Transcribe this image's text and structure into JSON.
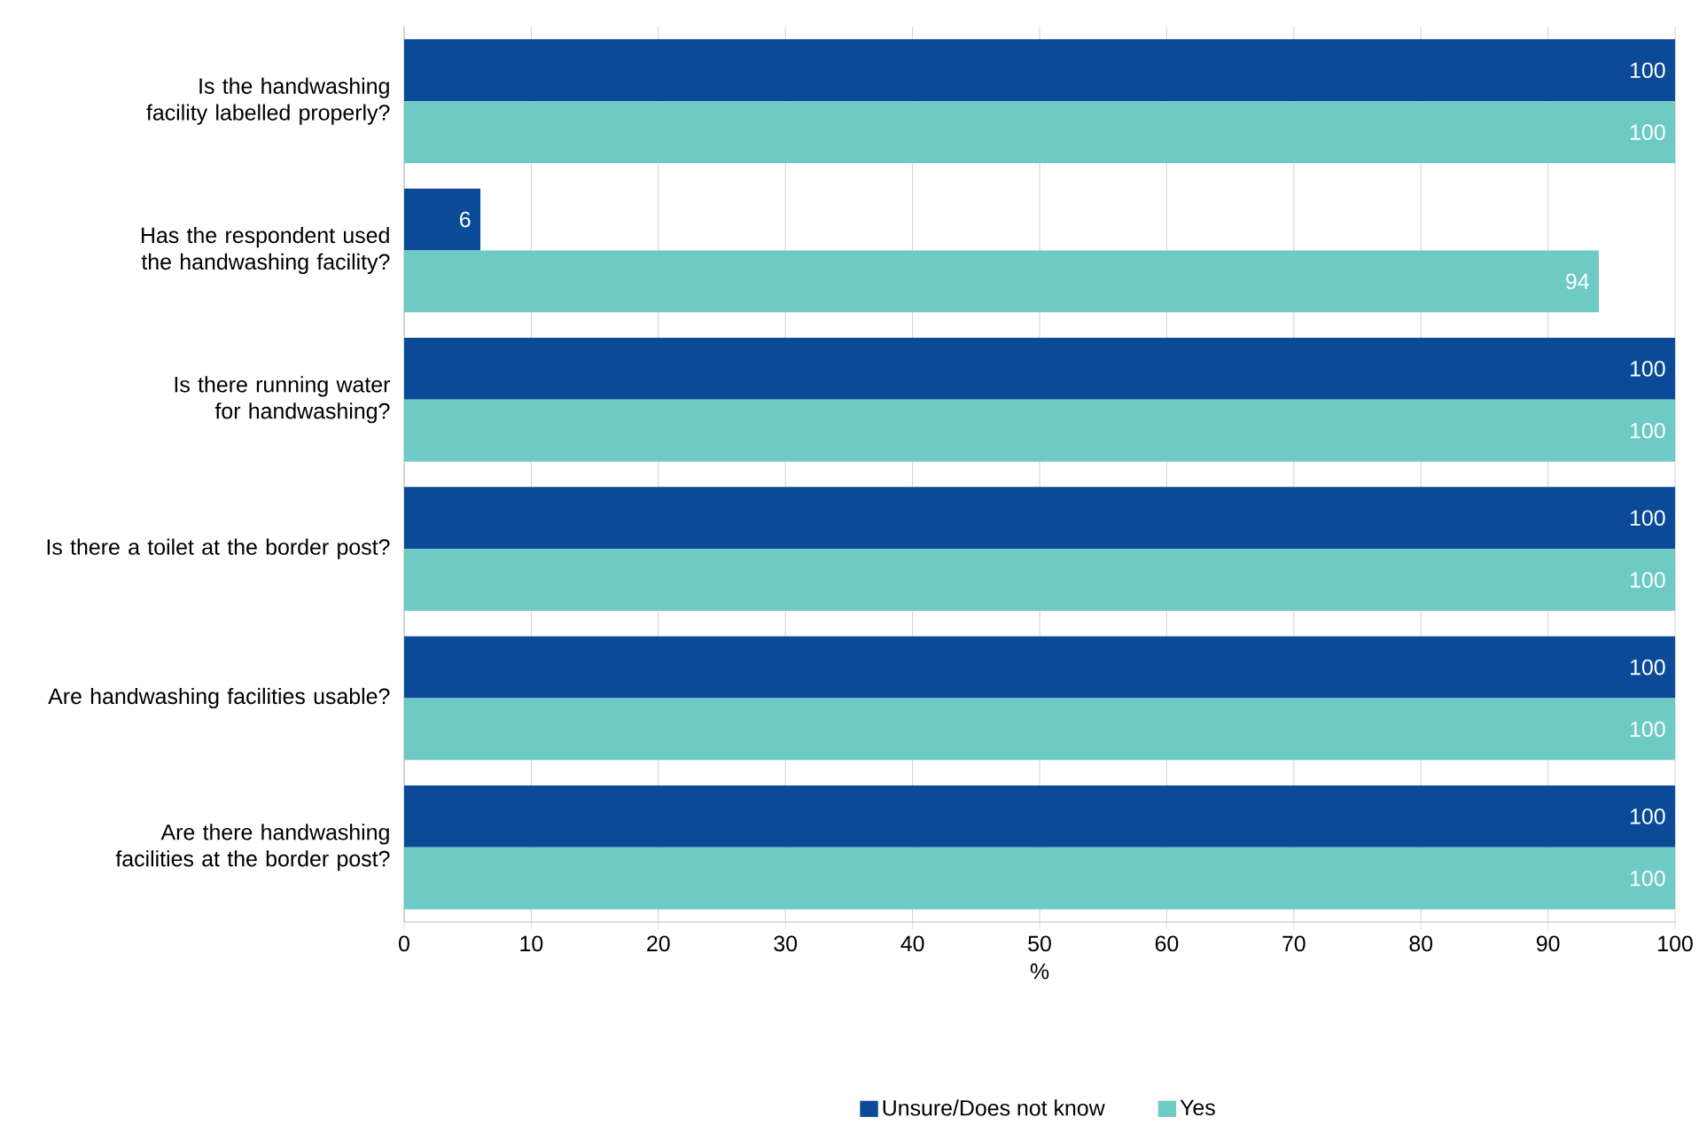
{
  "chart_data": {
    "type": "bar",
    "orientation": "horizontal",
    "categories": [
      "Is the handwashing facility labelled properly?",
      "Has the respondent used the handwashing facility?",
      "Is there running water for handwashing?",
      "Is there a toilet at the border post?",
      "Are handwashing facilities usable?",
      "Are there handwashing facilities at the border post?"
    ],
    "series": [
      {
        "name": "Unsure/Does not know",
        "color": "#0b4a97",
        "values": [
          100,
          6,
          100,
          100,
          100,
          100
        ]
      },
      {
        "name": "Yes",
        "color": "#6ecac4",
        "values": [
          100,
          94,
          100,
          100,
          100,
          100
        ]
      }
    ],
    "xlabel": "%",
    "xlim": [
      0,
      100
    ],
    "xticks": [
      0,
      10,
      20,
      30,
      40,
      50,
      60,
      70,
      80,
      90,
      100
    ],
    "grid": "x",
    "legend": "bottom",
    "data_labels": true
  }
}
